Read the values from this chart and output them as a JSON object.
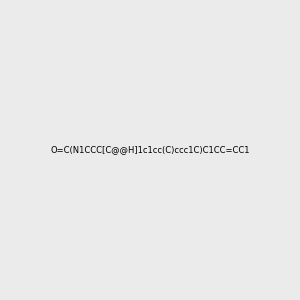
{
  "smiles": "O=C(N1CCC[C@@H]1c1cc(C)ccc1C)C1CC=CC1",
  "background_color": "#EBEBEB",
  "bond_color": "#000000",
  "n_color": "#0000FF",
  "o_color": "#FF0000",
  "figsize": [
    3.0,
    3.0
  ],
  "dpi": 100
}
